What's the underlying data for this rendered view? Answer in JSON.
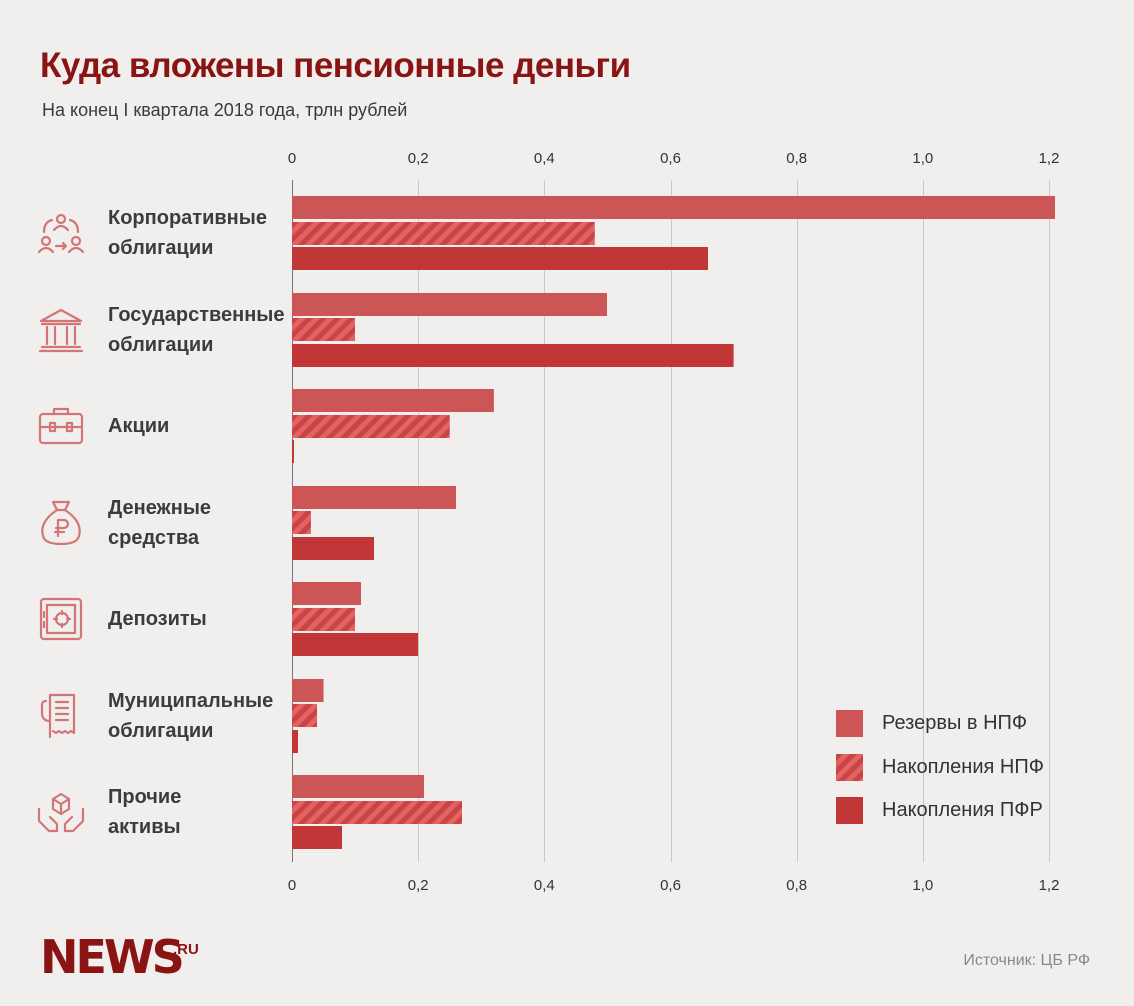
{
  "title": "Куда вложены пенсионные деньги",
  "subtitle": "На конец I квартала 2018 года, трлн рублей",
  "source": "Источник: ЦБ РФ",
  "logo": {
    "text": "NEWS",
    "suffix": ".RU"
  },
  "colors": {
    "reserves": "#cc5556",
    "savings_npf": "#e46262",
    "savings_npf_stripe": "#c94444",
    "savings_pfr": "#c13637",
    "title": "#8a1414",
    "icon": "#d47575"
  },
  "chart_data": {
    "type": "bar",
    "orientation": "horizontal",
    "xlim": [
      0,
      1.2
    ],
    "ticks": [
      "0",
      "0,2",
      "0,4",
      "0,6",
      "0,8",
      "1,0",
      "1,2"
    ],
    "tick_values": [
      0,
      0.2,
      0.4,
      0.6,
      0.8,
      1.0,
      1.2
    ],
    "categories": [
      {
        "lines": [
          "Корпоративные",
          "облигации"
        ],
        "icon": "people-exchange-icon"
      },
      {
        "lines": [
          "Государственные",
          "облигации"
        ],
        "icon": "government-building-icon"
      },
      {
        "lines": [
          "Акции"
        ],
        "icon": "briefcase-icon"
      },
      {
        "lines": [
          "Денежные",
          "средства"
        ],
        "icon": "money-bag-ruble-icon"
      },
      {
        "lines": [
          "Депозиты"
        ],
        "icon": "safe-icon"
      },
      {
        "lines": [
          "Муниципальные",
          "облигации"
        ],
        "icon": "document-scroll-icon"
      },
      {
        "lines": [
          "Прочие",
          "активы"
        ],
        "icon": "hands-box-icon"
      }
    ],
    "series": [
      {
        "name": "Резервы в НПФ",
        "pattern": "solid",
        "values": [
          1.21,
          0.5,
          0.32,
          0.26,
          0.11,
          0.05,
          0.21
        ]
      },
      {
        "name": "Накопления НПФ",
        "pattern": "hatched",
        "values": [
          0.48,
          0.1,
          0.25,
          0.03,
          0.1,
          0.04,
          0.27
        ]
      },
      {
        "name": "Накопления ПФР",
        "pattern": "solid",
        "values": [
          0.66,
          0.7,
          0.003,
          0.13,
          0.2,
          0.01,
          0.08
        ]
      }
    ],
    "legend_position": "bottom-right",
    "grid": true
  }
}
